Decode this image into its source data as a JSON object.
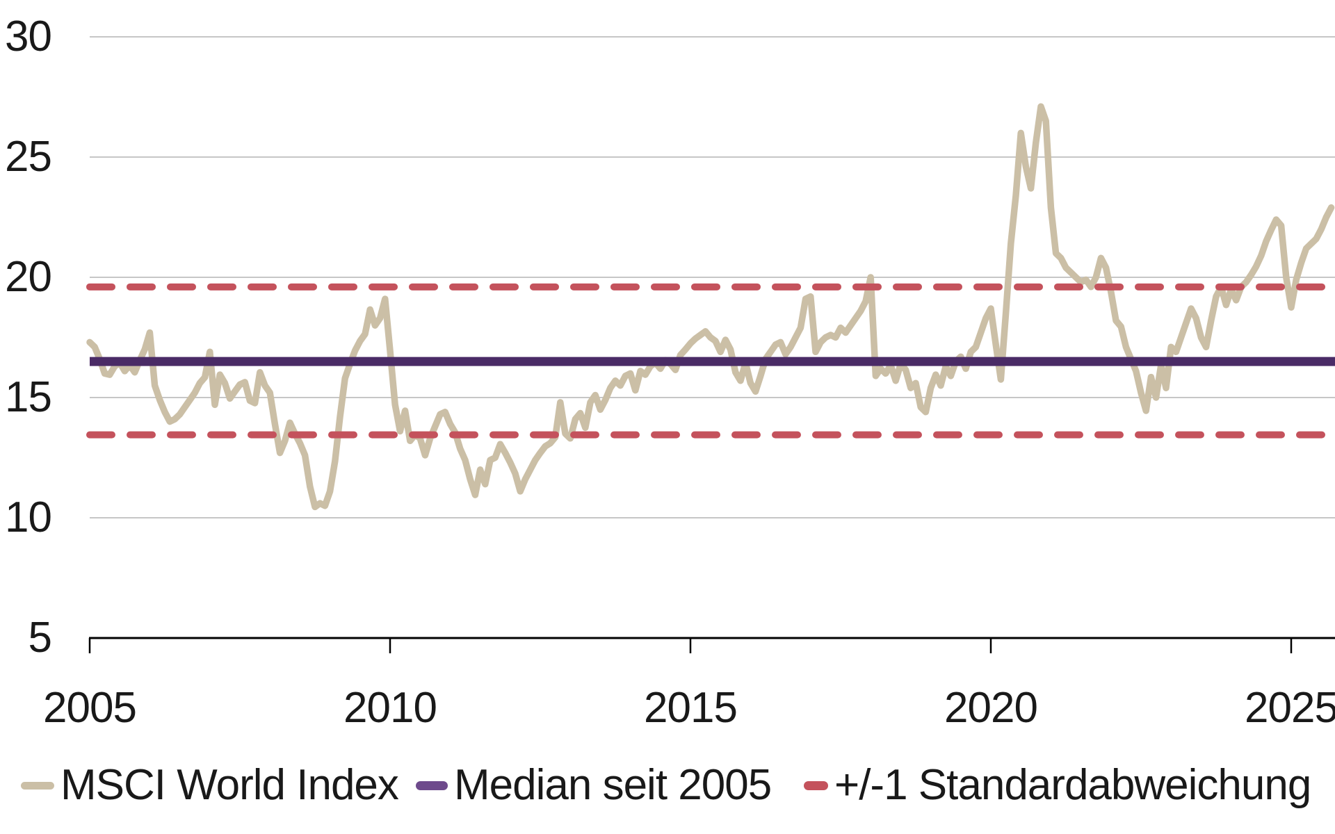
{
  "chart_data": {
    "type": "line",
    "title": "",
    "grid": true,
    "legend_position": "bottom",
    "colors": {
      "series": "#CBBFA6",
      "median": "#4A2B66",
      "band": "#C4525C",
      "gridline": "#C6C6C6",
      "axis": "#000000",
      "legend_median_swatch": "#6E4A8C",
      "text": "#191919",
      "background": "#FFFFFF"
    },
    "y_axis": {
      "range": [
        5,
        30
      ],
      "ticks": [
        5,
        10,
        15,
        20,
        25,
        30
      ],
      "tick_labels": [
        "5",
        "10",
        "15",
        "20",
        "25",
        "30"
      ],
      "gridlines": [
        10,
        15,
        20,
        25,
        30
      ]
    },
    "x_axis": {
      "start_year": 2005,
      "frequency": "monthly",
      "tick_years": [
        2005,
        2010,
        2015,
        2020,
        2025
      ],
      "tick_labels": [
        "2005",
        "2010",
        "2015",
        "2020",
        "2025"
      ]
    },
    "series": [
      {
        "name": "MSCI World Index",
        "color": "#CBBFA6",
        "start": "2005-01",
        "monthly_values": [
          17.3,
          17.1,
          16.6,
          16.0,
          15.95,
          16.3,
          16.45,
          16.1,
          16.35,
          16.05,
          16.55,
          17.0,
          17.7,
          15.5,
          14.9,
          14.4,
          14.0,
          14.1,
          14.3,
          14.6,
          14.9,
          15.2,
          15.6,
          15.84,
          16.9,
          14.7,
          15.95,
          15.6,
          14.96,
          15.25,
          15.54,
          15.64,
          14.87,
          14.77,
          16.05,
          15.5,
          15.2,
          13.9,
          12.7,
          13.2,
          13.95,
          13.5,
          13.1,
          12.6,
          11.3,
          10.45,
          10.6,
          10.5,
          11.1,
          12.35,
          14.2,
          15.8,
          16.4,
          16.95,
          17.35,
          17.64,
          18.66,
          18.0,
          18.3,
          19.1,
          16.95,
          14.7,
          13.6,
          14.45,
          13.2,
          13.45,
          13.3,
          12.6,
          13.3,
          13.8,
          14.3,
          14.4,
          13.9,
          13.55,
          12.87,
          12.4,
          11.6,
          10.95,
          12.0,
          11.4,
          12.4,
          12.5,
          13.06,
          12.7,
          12.3,
          11.84,
          11.1,
          11.6,
          12.0,
          12.4,
          12.7,
          12.97,
          13.1,
          13.35,
          14.8,
          13.5,
          13.3,
          14.1,
          14.35,
          13.75,
          14.8,
          15.1,
          14.5,
          14.9,
          15.4,
          15.7,
          15.5,
          15.9,
          16.0,
          15.3,
          16.1,
          15.95,
          16.3,
          16.45,
          16.2,
          16.55,
          16.4,
          16.15,
          16.77,
          17.0,
          17.25,
          17.45,
          17.6,
          17.75,
          17.5,
          17.35,
          16.9,
          17.4,
          17.0,
          16.05,
          15.7,
          16.45,
          15.6,
          15.25,
          15.9,
          16.6,
          16.9,
          17.2,
          17.3,
          16.8,
          17.1,
          17.5,
          17.9,
          19.1,
          19.2,
          16.9,
          17.3,
          17.5,
          17.6,
          17.5,
          17.9,
          17.7,
          18.0,
          18.3,
          18.6,
          19.0,
          20.0,
          15.9,
          16.2,
          16.0,
          16.35,
          15.7,
          16.4,
          16.15,
          15.4,
          15.6,
          14.6,
          14.4,
          15.4,
          15.95,
          15.5,
          16.3,
          15.9,
          16.5,
          16.7,
          16.2,
          16.9,
          17.1,
          17.7,
          18.3,
          18.7,
          17.2,
          15.75,
          18.5,
          21.4,
          23.4,
          26.0,
          24.6,
          23.7,
          25.6,
          27.1,
          26.5,
          22.9,
          21.0,
          20.8,
          20.4,
          20.2,
          20.0,
          19.8,
          19.9,
          19.6,
          20.0,
          20.8,
          20.4,
          19.4,
          18.2,
          17.95,
          17.1,
          16.6,
          16.1,
          15.2,
          14.45,
          15.85,
          15.0,
          16.35,
          15.4,
          17.1,
          16.9,
          17.5,
          18.1,
          18.7,
          18.3,
          17.5,
          17.1,
          18.2,
          19.2,
          19.6,
          18.85,
          19.5,
          19.05,
          19.6,
          19.8,
          20.1,
          20.45,
          20.9,
          21.5,
          21.97,
          22.4,
          22.15,
          20.0,
          18.75,
          19.9,
          20.6,
          21.2,
          21.4,
          21.6,
          22.0,
          22.5,
          22.9
        ]
      }
    ],
    "reference_lines": [
      {
        "name": "Median seit 2005",
        "value": 16.5,
        "style": "solid",
        "color": "#4A2B66"
      },
      {
        "name": "+1 Standardabweichung",
        "value": 19.6,
        "style": "dashed",
        "color": "#C4525C"
      },
      {
        "name": "-1 Standardabweichung",
        "value": 13.45,
        "style": "dashed",
        "color": "#C4525C"
      }
    ],
    "legend": [
      {
        "label": "MSCI World Index",
        "swatch_color": "#CBBFA6",
        "swatch_style": "line-tan"
      },
      {
        "label": "Median seit 2005",
        "swatch_color": "#6E4A8C",
        "swatch_style": "line-purple"
      },
      {
        "label": "+/-1 Standardabweichung",
        "swatch_color": "#C4525C",
        "swatch_style": "dash-red"
      }
    ]
  }
}
